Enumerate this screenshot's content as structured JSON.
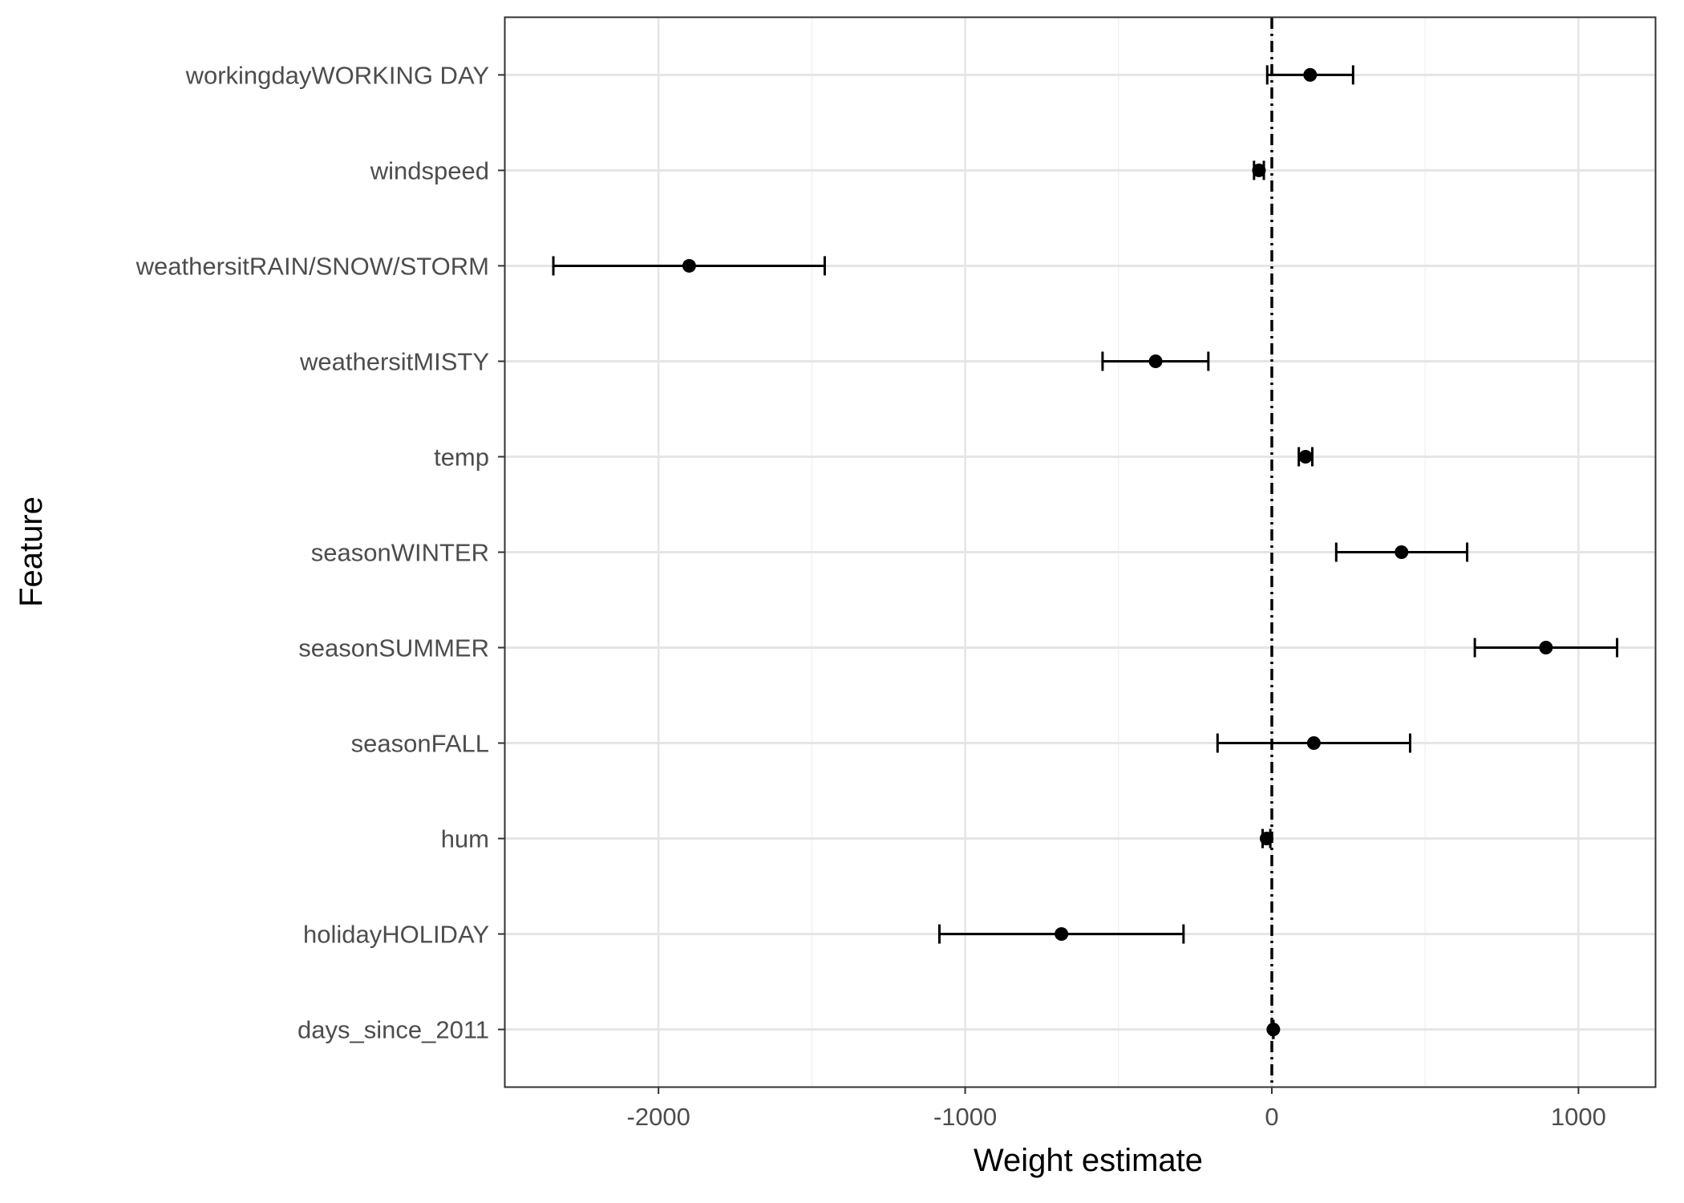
{
  "chart_data": {
    "type": "scatter",
    "subtype": "coefficient-plot-with-error-bars",
    "title": "",
    "xlabel": "Weight estimate",
    "ylabel": "Feature",
    "xlim": [
      -2500,
      1250
    ],
    "xticks": [
      -2000,
      -1000,
      0,
      1000
    ],
    "xtick_labels": [
      "-2000",
      "-1000",
      "0",
      "1000"
    ],
    "grid": true,
    "reference_line": {
      "x": 0,
      "style": "dot-dash",
      "color": "#000000"
    },
    "categories": [
      "workingdayWORKING DAY",
      "windspeed",
      "weathersitRAIN/SNOW/STORM",
      "weathersitMISTY",
      "temp",
      "seasonWINTER",
      "seasonSUMMER",
      "seasonFALL",
      "hum",
      "holidayHOLIDAY",
      "days_since_2011"
    ],
    "estimates": [
      125,
      -42,
      -1900,
      -379,
      110,
      423,
      894,
      137,
      -17,
      -686,
      4.9
    ],
    "lower": [
      -15,
      -58,
      -2343,
      -552,
      88,
      210,
      662,
      -177,
      -30,
      -1084,
      4.4
    ],
    "upper": [
      265,
      -26,
      -1458,
      -207,
      132,
      637,
      1126,
      451,
      -5,
      -288,
      5.3
    ]
  },
  "colors": {
    "points": "#000000",
    "error_bars": "#000000",
    "panel_border": "#333333",
    "grid_major": "#e5e5e5",
    "grid_minor": "#f2f2f2",
    "tick_text": "#4d4d4d",
    "axis_title": "#000000"
  }
}
